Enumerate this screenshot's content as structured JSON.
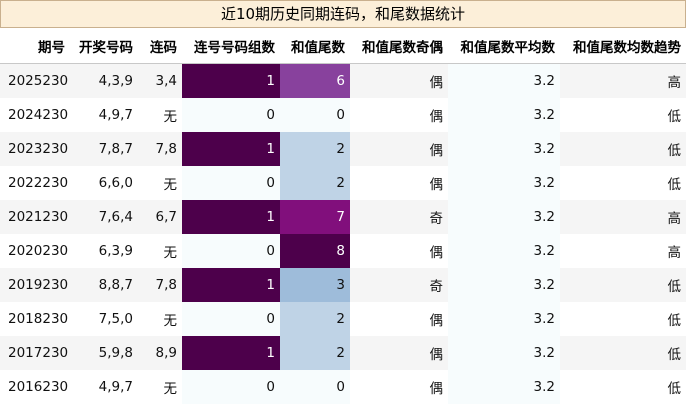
{
  "title": "近10期历史同期连码，和尾数据统计",
  "columns": [
    "期号",
    "开奖号码",
    "连码",
    "连号号码组数",
    "和值尾数",
    "和值尾数奇偶",
    "和值尾数平均数",
    "和值尾数均数趋势"
  ],
  "rows": [
    {
      "issue": "2025230",
      "numbers": "4,3,9",
      "consec": "3,4",
      "groups": "1",
      "tail": "6",
      "parity": "偶",
      "avg": "3.2",
      "trend": "高"
    },
    {
      "issue": "2024230",
      "numbers": "4,9,7",
      "consec": "无",
      "groups": "0",
      "tail": "0",
      "parity": "偶",
      "avg": "3.2",
      "trend": "低"
    },
    {
      "issue": "2023230",
      "numbers": "7,8,7",
      "consec": "7,8",
      "groups": "1",
      "tail": "2",
      "parity": "偶",
      "avg": "3.2",
      "trend": "低"
    },
    {
      "issue": "2022230",
      "numbers": "6,6,0",
      "consec": "无",
      "groups": "0",
      "tail": "2",
      "parity": "偶",
      "avg": "3.2",
      "trend": "低"
    },
    {
      "issue": "2021230",
      "numbers": "7,6,4",
      "consec": "6,7",
      "groups": "1",
      "tail": "7",
      "parity": "奇",
      "avg": "3.2",
      "trend": "高"
    },
    {
      "issue": "2020230",
      "numbers": "6,3,9",
      "consec": "无",
      "groups": "0",
      "tail": "8",
      "parity": "偶",
      "avg": "3.2",
      "trend": "高"
    },
    {
      "issue": "2019230",
      "numbers": "8,8,7",
      "consec": "7,8",
      "groups": "1",
      "tail": "3",
      "parity": "奇",
      "avg": "3.2",
      "trend": "低"
    },
    {
      "issue": "2018230",
      "numbers": "7,5,0",
      "consec": "无",
      "groups": "0",
      "tail": "2",
      "parity": "偶",
      "avg": "3.2",
      "trend": "低"
    },
    {
      "issue": "2017230",
      "numbers": "5,9,8",
      "consec": "8,9",
      "groups": "1",
      "tail": "2",
      "parity": "偶",
      "avg": "3.2",
      "trend": "低"
    },
    {
      "issue": "2016230",
      "numbers": "4,9,7",
      "consec": "无",
      "groups": "0",
      "tail": "0",
      "parity": "偶",
      "avg": "3.2",
      "trend": "低"
    }
  ],
  "colors": {
    "title_bg": "#fcefd9",
    "title_border": "#c9b08e",
    "groups_high": "#4d004b",
    "groups_low": "#f7fcfd",
    "tail_0": "#f7fcfd",
    "tail_2": "#bfd3e6",
    "tail_3": "#9ebcda",
    "tail_6": "#88419d",
    "tail_7": "#810f7c",
    "tail_8": "#4d004b"
  }
}
